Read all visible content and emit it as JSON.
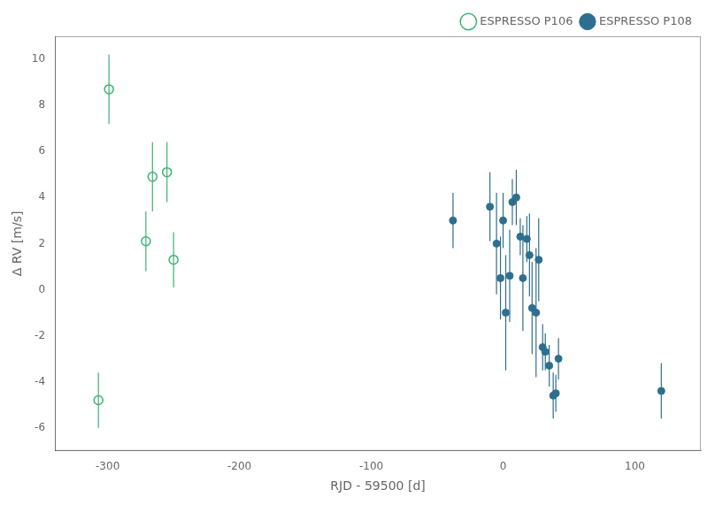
{
  "chart_data": {
    "type": "scatter",
    "xlabel": "RJD - 59500 [d]",
    "ylabel": "Δ RV [m/s]",
    "xlim": [
      -340,
      150
    ],
    "ylim": [
      -7,
      11
    ],
    "xticks": [
      -300,
      -200,
      -100,
      0,
      100
    ],
    "yticks": [
      -6,
      -4,
      -2,
      0,
      2,
      4,
      6,
      8,
      10
    ],
    "grid": false,
    "legend": "upper right",
    "series": [
      {
        "name": "ESPRESSO P106",
        "color": "#3cb371",
        "marker": "open_circle",
        "x": [
          -307,
          -299,
          -271,
          -266,
          -255,
          -250
        ],
        "values": [
          -4.8,
          8.7,
          2.1,
          4.9,
          5.1,
          1.3
        ],
        "yerr": [
          1.2,
          1.5,
          1.3,
          1.5,
          1.3,
          1.2
        ]
      },
      {
        "name": "ESPRESSO P108",
        "color": "#2e6e8e",
        "marker": "circle",
        "x": [
          -38,
          -10,
          -5,
          -2,
          0,
          2,
          5,
          7,
          10,
          13,
          15,
          18,
          20,
          22,
          25,
          27,
          30,
          32,
          35,
          38,
          40,
          42,
          120
        ],
        "values": [
          3.0,
          3.6,
          2.0,
          0.5,
          3.0,
          -1.0,
          0.6,
          3.8,
          4.0,
          2.3,
          0.5,
          2.2,
          1.5,
          -0.8,
          -1.0,
          1.3,
          -2.5,
          -2.7,
          -3.3,
          -4.6,
          -4.5,
          -3.0,
          -4.4
        ],
        "yerr": [
          1.2,
          1.5,
          2.2,
          1.8,
          1.2,
          2.5,
          2.0,
          1.0,
          1.2,
          0.8,
          2.3,
          1.0,
          1.8,
          2.0,
          2.8,
          1.8,
          1.0,
          0.8,
          0.9,
          1.0,
          0.8,
          0.9,
          1.2
        ]
      }
    ]
  }
}
